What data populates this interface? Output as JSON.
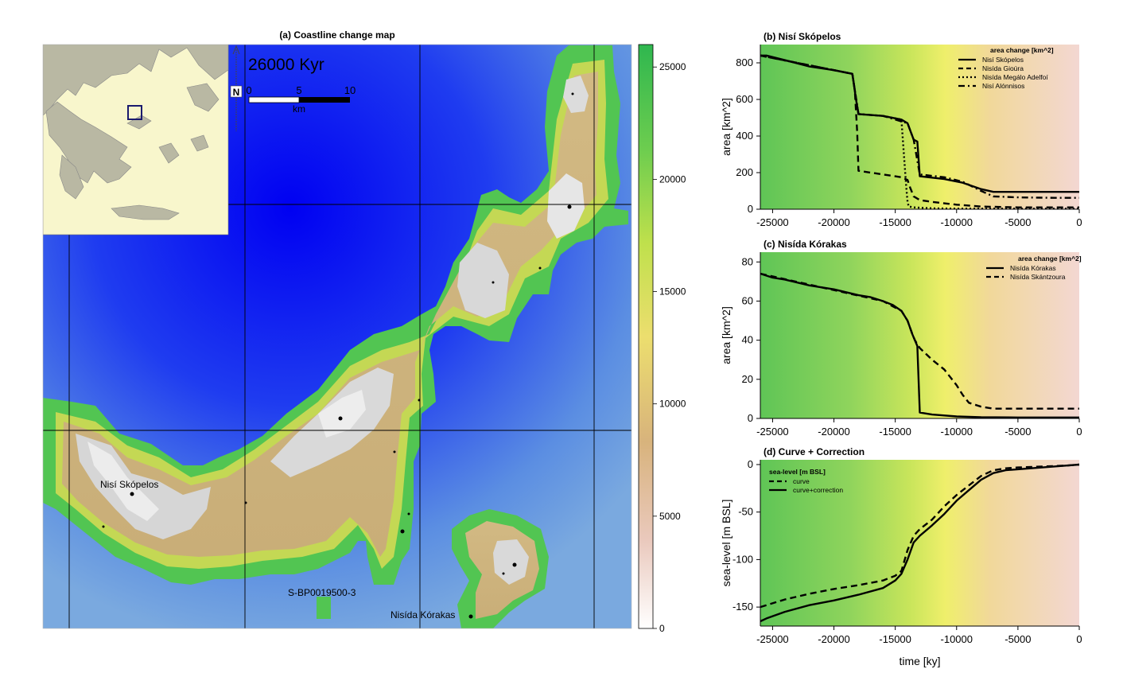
{
  "map": {
    "title": "(a) Coastline change map",
    "time_label": "26000 Kyr",
    "north_label": "N",
    "scalebar": {
      "ticks": [
        "0",
        "5",
        "10"
      ],
      "unit": "km"
    },
    "place_labels": [
      "Nisí Skópelos",
      "S-BP0019500-3",
      "Nisída Kórakas"
    ],
    "colorbar": {
      "ticks": [
        "25000",
        "20000",
        "15000",
        "10000",
        "5000",
        "0"
      ],
      "values": [
        25000,
        20000,
        15000,
        10000,
        5000,
        0
      ],
      "max": 26000,
      "colors": [
        "#ffffff",
        "#e8c7b8",
        "#d6b27a",
        "#eddc6f",
        "#c7e24f",
        "#6ccf4e",
        "#33b84f"
      ]
    },
    "colors": {
      "sea_deep": "#0a0af0",
      "sea_shallow": "#7aa8e0",
      "land_low": "#c8b27a",
      "land_high": "#e6e6e6",
      "inset_land": "#b5b5a0",
      "inset_sea": "#f8f6cc"
    }
  },
  "chart_data": [
    {
      "type": "line",
      "title": "(b) Nisí Skópelos",
      "xlabel": "",
      "ylabel": "area [km^2]",
      "xlim": [
        -26000,
        0
      ],
      "ylim": [
        0,
        900
      ],
      "x_ticks": [
        -25000,
        -20000,
        -15000,
        -10000,
        -5000,
        0
      ],
      "x_tick_labels": [
        "-25000",
        "-20000",
        "-15000",
        "-10000",
        "-5000",
        "0"
      ],
      "y_ticks": [
        0,
        200,
        400,
        600,
        800
      ],
      "y_tick_labels": [
        "0",
        "200",
        "400",
        "600",
        "800"
      ],
      "legend_title": "area change [km^2]",
      "legend_position": "top-right",
      "series": [
        {
          "name": "Nisí Skópelos",
          "dash": "solid",
          "x": [
            -26000,
            -25500,
            -24000,
            -22000,
            -20000,
            -18500,
            -18200,
            -18000,
            -16000,
            -14500,
            -14000,
            -13500,
            -13200,
            -13000,
            -11000,
            -9500,
            -8000,
            -7000,
            -5000,
            -2000,
            0
          ],
          "y": [
            840,
            840,
            815,
            780,
            760,
            740,
            600,
            520,
            510,
            490,
            470,
            380,
            370,
            180,
            165,
            145,
            110,
            95,
            95,
            95,
            95
          ]
        },
        {
          "name": "Nisída Gioúra",
          "dash": "dashed",
          "x": [
            -26000,
            -18500,
            -18300,
            -18100,
            -18000,
            -16000,
            -14500,
            -14000,
            -13800,
            -13500,
            -13000,
            -12000,
            -10000,
            -8000,
            -5000,
            0
          ],
          "y": [
            840,
            740,
            650,
            420,
            210,
            190,
            175,
            160,
            120,
            70,
            50,
            40,
            25,
            15,
            10,
            10
          ]
        },
        {
          "name": "Nisída Megálo Adelfoí",
          "dash": "dotted",
          "x": [
            -26000,
            -18500,
            -18000,
            -16000,
            -14500,
            -14300,
            -14100,
            -14000,
            -13900,
            -13500,
            -12000,
            -10000,
            -5000,
            0
          ],
          "y": [
            840,
            740,
            520,
            510,
            490,
            300,
            120,
            40,
            15,
            10,
            5,
            3,
            3,
            3
          ]
        },
        {
          "name": "Nisí Alónnisos",
          "dash": "dotdash",
          "x": [
            -26000,
            -18500,
            -18000,
            -16000,
            -14000,
            -13500,
            -13000,
            -11000,
            -9500,
            -8000,
            -7000,
            -5000,
            -2000,
            0
          ],
          "y": [
            840,
            740,
            520,
            510,
            470,
            380,
            190,
            175,
            150,
            100,
            70,
            65,
            62,
            62
          ]
        }
      ]
    },
    {
      "type": "line",
      "title": "(c) Nisída Kórakas",
      "xlabel": "",
      "ylabel": "area [km^2]",
      "xlim": [
        -26000,
        0
      ],
      "ylim": [
        0,
        85
      ],
      "x_ticks": [
        -25000,
        -20000,
        -15000,
        -10000,
        -5000,
        0
      ],
      "x_tick_labels": [
        "-25000",
        "-20000",
        "-15000",
        "-10000",
        "-5000",
        "0"
      ],
      "y_ticks": [
        0,
        20,
        40,
        60,
        80
      ],
      "y_tick_labels": [
        "0",
        "20",
        "40",
        "60",
        "80"
      ],
      "legend_title": "area change [km^2]",
      "legend_position": "top-right",
      "series": [
        {
          "name": "Nisída Kórakas",
          "dash": "solid",
          "x": [
            -26000,
            -25000,
            -24000,
            -22000,
            -20000,
            -18000,
            -17000,
            -16000,
            -15200,
            -14500,
            -14000,
            -13600,
            -13400,
            -13200,
            -13000,
            -12000,
            -10000,
            -8000,
            -5000,
            -2000,
            0
          ],
          "y": [
            74,
            72,
            71,
            68,
            66,
            63,
            62,
            60,
            58,
            55,
            50,
            43,
            40,
            37,
            3,
            2,
            1,
            0.6,
            0.5,
            0.5,
            0.5
          ]
        },
        {
          "name": "Nisída Skántzoura",
          "dash": "dashed",
          "x": [
            -26000,
            -16000,
            -14500,
            -14000,
            -13600,
            -13400,
            -13000,
            -12000,
            -11000,
            -10000,
            -9500,
            -9000,
            -8000,
            -7000,
            -5000,
            -2000,
            0
          ],
          "y": [
            74,
            60,
            55,
            50,
            43,
            40,
            36,
            30,
            25,
            17,
            12,
            8,
            6,
            5,
            5,
            5,
            5
          ]
        }
      ]
    },
    {
      "type": "line",
      "title": "(d) Curve + Correction",
      "xlabel": "time [ky]",
      "ylabel": "sea-level [m BSL]",
      "xlim": [
        -26000,
        0
      ],
      "ylim": [
        -170,
        5
      ],
      "x_ticks": [
        -25000,
        -20000,
        -15000,
        -10000,
        -5000,
        0
      ],
      "x_tick_labels": [
        "-25000",
        "-20000",
        "-15000",
        "-10000",
        "-5000",
        "0"
      ],
      "y_ticks": [
        -150,
        -100,
        -50,
        0
      ],
      "y_tick_labels": [
        "-150",
        "-100",
        "-50",
        "0"
      ],
      "legend_title": "sea-level [m BSL]",
      "legend_position": "top-left",
      "series": [
        {
          "name": "curve",
          "dash": "dashed",
          "x": [
            -26000,
            -24000,
            -22000,
            -20000,
            -18000,
            -16000,
            -15000,
            -14500,
            -14000,
            -13500,
            -13000,
            -12000,
            -11000,
            -10000,
            -9000,
            -8000,
            -7000,
            -6000,
            -5000,
            -3000,
            -1000,
            0
          ],
          "y": [
            -150,
            -142,
            -136,
            -131,
            -127,
            -122,
            -117,
            -112,
            -90,
            -75,
            -68,
            -58,
            -44,
            -32,
            -22,
            -12,
            -6,
            -4,
            -3,
            -2,
            -1,
            0
          ]
        },
        {
          "name": "curve+correction",
          "dash": "solid",
          "x": [
            -26000,
            -25500,
            -24000,
            -22000,
            -20000,
            -18000,
            -16000,
            -15000,
            -14500,
            -14000,
            -13500,
            -13000,
            -12000,
            -11000,
            -10000,
            -9000,
            -8000,
            -7000,
            -6000,
            -5000,
            -3000,
            -1000,
            0
          ],
          "y": [
            -165,
            -162,
            -155,
            -148,
            -143,
            -137,
            -130,
            -122,
            -115,
            -100,
            -82,
            -75,
            -64,
            -52,
            -38,
            -27,
            -16,
            -9,
            -6,
            -5,
            -3,
            -1,
            0
          ]
        }
      ]
    }
  ]
}
